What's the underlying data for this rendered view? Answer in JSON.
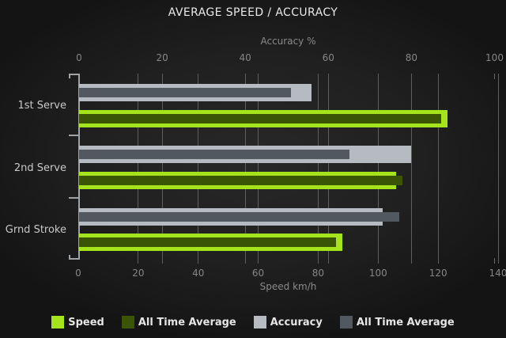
{
  "chart_data": {
    "type": "bar",
    "orientation": "horizontal",
    "title": "AVERAGE SPEED / ACCURACY",
    "categories": [
      "1st Serve",
      "2nd Serve",
      "Grnd Stroke"
    ],
    "top_axis": {
      "label": "Accuracy %",
      "ticks": [
        0,
        20,
        40,
        60,
        80,
        100
      ],
      "range": [
        0,
        100
      ]
    },
    "bottom_axis": {
      "label": "Speed km/h",
      "ticks": [
        0,
        20,
        40,
        60,
        80,
        100,
        120,
        140
      ],
      "range": [
        0,
        140
      ]
    },
    "grid": true,
    "pairs": [
      {
        "outer": {
          "name": "Accuracy",
          "axis": "top",
          "color": "#b5bbc1",
          "values": [
            56,
            80,
            73
          ]
        },
        "inner": {
          "name": "All Time Average",
          "axis": "top",
          "color": "#51585f",
          "values": [
            51,
            65,
            77
          ]
        }
      },
      {
        "outer": {
          "name": "Speed",
          "axis": "bottom",
          "color": "#a5e41c",
          "values": [
            123,
            106,
            88
          ]
        },
        "inner": {
          "name": "All Time Average",
          "axis": "bottom",
          "color": "#3b5506",
          "values": [
            121,
            108,
            86
          ]
        }
      }
    ],
    "series": [
      {
        "name": "Speed",
        "values": [
          123,
          106,
          88
        ]
      },
      {
        "name": "All Time Average (Speed)",
        "values": [
          121,
          108,
          86
        ]
      },
      {
        "name": "Accuracy",
        "values": [
          56,
          80,
          73
        ]
      },
      {
        "name": "All Time Average (Accuracy)",
        "values": [
          51,
          65,
          77
        ]
      }
    ],
    "legend": {
      "position": "bottom",
      "items": [
        {
          "label": "Speed",
          "color": "#a5e41c"
        },
        {
          "label": "All Time Average",
          "color": "#3b5506"
        },
        {
          "label": "Accuracy",
          "color": "#b5bbc1"
        },
        {
          "label": "All Time Average",
          "color": "#51585f"
        }
      ]
    },
    "colors": {
      "background_center": "#282828",
      "background_edge": "#141414",
      "gridline": "#5e5e5e",
      "axis_line": "#9fa4a8",
      "title_text": "#e9e9e9",
      "axis_text": "#8a8a8a",
      "tick_text": "#868686",
      "category_text": "#c9c9c9",
      "legend_text": "#e5e5e5"
    }
  }
}
